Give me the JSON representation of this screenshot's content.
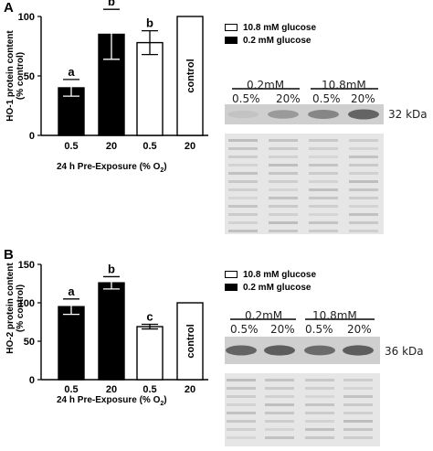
{
  "panels": {
    "A": {
      "letter": "A",
      "ylabel": [
        "HO-1 protein content",
        "(% control)"
      ],
      "xtitle": "24 h Pre-Exposure (% O",
      "xtitle_sub": "2",
      "xtitle_end": ")",
      "legend": [
        {
          "label": "10.8 mM glucose",
          "fill": "#ffffff"
        },
        {
          "label": "0.2 mM glucose",
          "fill": "#000000"
        }
      ],
      "blot": {
        "groups": [
          "0.2mM",
          "10.8mM"
        ],
        "lanes": [
          "0.5%",
          "20%",
          "0.5%",
          "20%"
        ],
        "size": "32 kDa",
        "band_intensity": [
          0.05,
          0.35,
          0.5,
          0.75
        ]
      }
    },
    "B": {
      "letter": "B",
      "ylabel": [
        "HO-2 protein content",
        "(% control)"
      ],
      "xtitle": "24 h Pre-Exposure (% O",
      "xtitle_sub": "2",
      "xtitle_end": ")",
      "legend": [
        {
          "label": "10.8 mM glucose",
          "fill": "#ffffff"
        },
        {
          "label": "0.2 mM glucose",
          "fill": "#000000"
        }
      ],
      "blot": {
        "groups": [
          "0.2mM",
          "10.8mM"
        ],
        "lanes": [
          "0.5%",
          "20%",
          "0.5%",
          "20%"
        ],
        "size": "36 kDa",
        "band_intensity": [
          0.75,
          0.8,
          0.7,
          0.8
        ]
      }
    }
  },
  "chart_data": [
    {
      "type": "bar",
      "categories": [
        "0.5",
        "20",
        "0.5",
        "20"
      ],
      "values": [
        40,
        85,
        78,
        100
      ],
      "errors": [
        7,
        21,
        10,
        0
      ],
      "fills": [
        "#000000",
        "#000000",
        "#ffffff",
        "#ffffff"
      ],
      "bar_labels": [
        "a",
        "b",
        "b",
        ""
      ],
      "inner_labels": [
        "",
        "",
        "",
        "control"
      ],
      "xlabel": "24 h Pre-Exposure (% O2)",
      "ylabel": "HO-1 protein content (% control)",
      "ylim": [
        0,
        100
      ],
      "yticks": [
        0,
        50,
        100
      ]
    },
    {
      "type": "bar",
      "categories": [
        "0.5",
        "20",
        "0.5",
        "20"
      ],
      "values": [
        95,
        126,
        69,
        100
      ],
      "errors": [
        10,
        8,
        3,
        0
      ],
      "fills": [
        "#000000",
        "#000000",
        "#ffffff",
        "#ffffff"
      ],
      "bar_labels": [
        "a",
        "b",
        "c",
        ""
      ],
      "inner_labels": [
        "",
        "",
        "",
        "control"
      ],
      "xlabel": "24 h Pre-Exposure (% O2)",
      "ylabel": "HO-2 protein content (% control)",
      "ylim": [
        0,
        150
      ],
      "yticks": [
        0,
        50,
        100,
        150
      ]
    }
  ]
}
